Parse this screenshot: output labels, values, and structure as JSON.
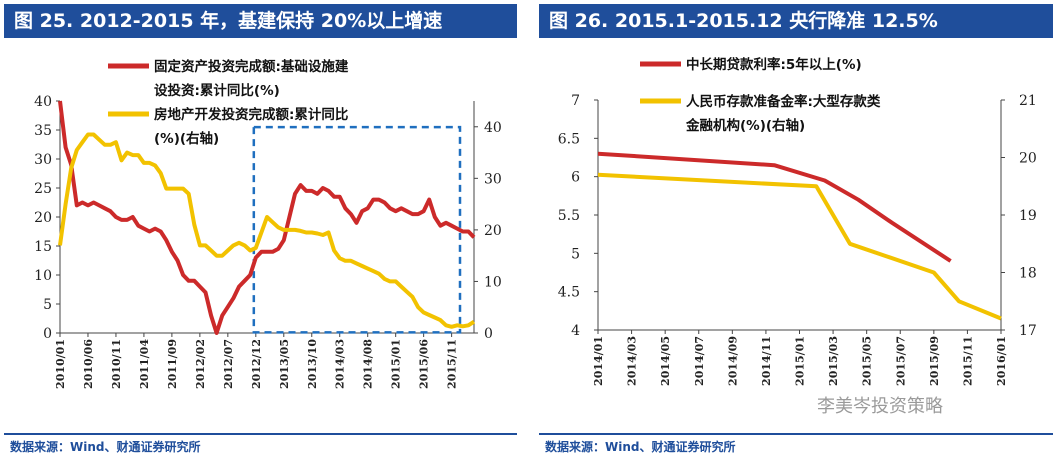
{
  "left": {
    "header": "图 25. 2012-2015 年，基建保持 20%以上增速",
    "source": "数据来源：Wind、财通证券研究所",
    "chart_data": {
      "type": "line",
      "title": "图 25. 2012-2015 年，基建保持 20%以上增速",
      "y_left_lim": [
        0,
        40
      ],
      "y_left_ticks": [
        "0",
        "5",
        "10",
        "15",
        "20",
        "25",
        "30",
        "35",
        "40"
      ],
      "y_right_lim": [
        0,
        45
      ],
      "y_right_ticks": [
        "0",
        "10",
        "20",
        "30",
        "40"
      ],
      "x_tick_labels": [
        "2010/01",
        "2010/06",
        "2010/11",
        "2011/04",
        "2011/09",
        "2012/02",
        "2012/07",
        "2012/12",
        "2013/05",
        "2013/10",
        "2014/03",
        "2014/08",
        "2015/01",
        "2015/06",
        "2015/11"
      ],
      "highlight": "2012/12 - 2015/12",
      "series": [
        {
          "name": "固定资产投资完成额:基础设施建设投资:累计同比(%)",
          "legend_lines": [
            "固定资产投资完成额:基础设施建",
            "设投资:累计同比(%)"
          ],
          "axis": "left",
          "color": "#cc2a2a",
          "values": [
            40,
            32,
            29,
            22,
            22.5,
            22,
            22.5,
            22,
            21.5,
            21,
            20,
            19.5,
            19.5,
            20,
            18.5,
            18,
            17.5,
            18,
            17.5,
            16,
            14,
            12.5,
            10,
            9,
            9,
            8,
            7,
            3,
            0,
            3,
            4.5,
            6,
            8,
            9,
            10,
            13,
            14,
            14,
            14,
            14.5,
            16,
            20,
            24,
            25.5,
            24.5,
            24.5,
            24,
            25,
            24.5,
            23.5,
            23.5,
            21.5,
            20.5,
            19,
            21,
            21.5,
            23,
            23,
            22.5,
            21.5,
            21,
            21.5,
            21,
            20.5,
            20.5,
            21,
            23,
            20,
            18.5,
            19,
            18.5,
            18,
            17.5,
            17.5,
            16.5
          ]
        },
        {
          "name": "房地产开发投资完成额:累计同比(%)(右轴)",
          "legend_lines": [
            "房地产开发投资完成额:累计同比",
            "(%)(右轴)"
          ],
          "axis": "right",
          "color": "#f2c200",
          "values": [
            17,
            25,
            32,
            35.5,
            37,
            38.5,
            38.5,
            37.5,
            36.5,
            36.5,
            37,
            33.5,
            35,
            34.5,
            34.5,
            33,
            33,
            32.5,
            31,
            28,
            28,
            28,
            28,
            27,
            21,
            17,
            17,
            16,
            15,
            15,
            16,
            17,
            17.5,
            17,
            16,
            16.5,
            19.5,
            22.5,
            21.5,
            20.5,
            20,
            20,
            20,
            19.8,
            19.5,
            19.5,
            19.3,
            19,
            19.5,
            16,
            14.5,
            14,
            14,
            13.5,
            13,
            12.5,
            12,
            11.5,
            10.5,
            10,
            10,
            9,
            8,
            7,
            5,
            4,
            3.5,
            3,
            2.5,
            1.5,
            1.2,
            1.5,
            1.3,
            1.5,
            2.2
          ]
        }
      ]
    }
  },
  "right": {
    "header": "图 26. 2015.1-2015.12 央行降准 12.5%",
    "source": "数据来源：Wind、财通证券研究所",
    "watermark": "李美岑投资策略",
    "chart_data": {
      "type": "line",
      "title": "图 26. 2015.1-2015.12 央行降准 12.5%",
      "y_left_lim": [
        4,
        7
      ],
      "y_left_ticks": [
        "4",
        "4.5",
        "5",
        "5.5",
        "6",
        "6.5",
        "7"
      ],
      "y_right_lim": [
        17,
        21
      ],
      "y_right_ticks": [
        "17",
        "18",
        "19",
        "20",
        "21"
      ],
      "x_tick_labels": [
        "2014/01",
        "2014/03",
        "2014/05",
        "2014/07",
        "2014/09",
        "2014/11",
        "2015/01",
        "2015/03",
        "2015/05",
        "2015/07",
        "2015/09",
        "2015/11",
        "2016/01"
      ],
      "series": [
        {
          "name": "中长期贷款利率:5年以上(%)",
          "legend_lines": [
            "中长期贷款利率:5年以上(%)"
          ],
          "axis": "left",
          "color": "#cc2a2a",
          "points": [
            [
              0,
              6.3
            ],
            [
              10.5,
              6.15
            ],
            [
              13.5,
              5.95
            ],
            [
              15.5,
              5.7
            ],
            [
              17.5,
              5.4
            ],
            [
              21,
              4.9
            ]
          ]
        },
        {
          "name": "人民币存款准备金率:大型存款类金融机构(%)(右轴)",
          "legend_lines": [
            "人民币存款准备金率:大型存款类",
            "金融机构(%)(右轴)"
          ],
          "axis": "right",
          "color": "#f2c200",
          "points": [
            [
              0,
              19.7
            ],
            [
              13,
              19.5
            ],
            [
              15,
              18.5
            ],
            [
              20,
              18
            ],
            [
              21.5,
              17.5
            ],
            [
              24,
              17.2
            ]
          ]
        }
      ]
    }
  }
}
